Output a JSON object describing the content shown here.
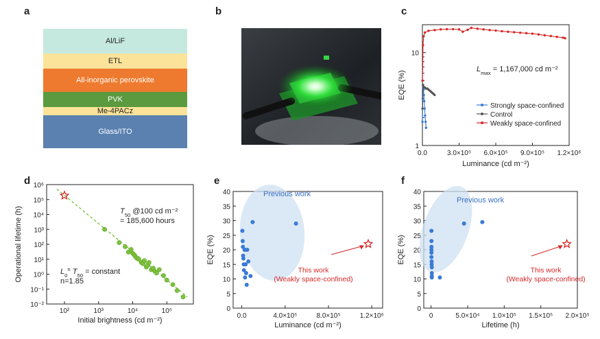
{
  "panels": [
    "a",
    "b",
    "c",
    "d",
    "e",
    "f"
  ],
  "stack": {
    "layers": [
      {
        "label": "Al/LiF",
        "color": "#c6e9df"
      },
      {
        "label": "ETL",
        "color": "#fbe39a"
      },
      {
        "label": "All-inorganic perovskite",
        "color": "#ee7a2f"
      },
      {
        "label": "PVK",
        "color": "#5b9a3e"
      },
      {
        "label": "Me-4PACz",
        "color": "#fbe39a"
      },
      {
        "label": "Glass/ITO",
        "color": "#5a81b0"
      }
    ]
  },
  "chart_data": [
    {
      "panel": "c",
      "type": "line",
      "xlabel": "Luminance (cd m⁻²)",
      "ylabel": "EQE (%)",
      "xlim": [
        0,
        1200000
      ],
      "ylim": [
        1,
        20
      ],
      "yscale": "log",
      "xticks": [
        "0.0",
        "3.0×10⁵",
        "6.0×10⁵",
        "9.0×10⁵",
        "1.2×10⁶"
      ],
      "yticks": [
        "1",
        "10"
      ],
      "annotation": {
        "symbol": "L",
        "sub": "max",
        "text": " = 1,167,000 cd m⁻²"
      },
      "legend_position": "center-right",
      "series": [
        {
          "name": "Strongly space-confined",
          "color": "#3a7bd5",
          "x": [
            1000,
            3000,
            6000,
            9000,
            12000,
            15000,
            18000,
            22000,
            26000,
            30000
          ],
          "y": [
            1.8,
            3.2,
            4.2,
            4.0,
            3.5,
            3.0,
            2.5,
            2.1,
            1.8,
            1.55
          ]
        },
        {
          "name": "Control",
          "color": "#555555",
          "x": [
            1000,
            5000,
            10000,
            20000,
            30000,
            40000,
            50000,
            60000,
            70000,
            80000,
            90000,
            100000
          ],
          "y": [
            2.5,
            4.5,
            4.3,
            4.2,
            4.1,
            4.1,
            4.0,
            3.9,
            3.8,
            3.7,
            3.6,
            3.5
          ]
        },
        {
          "name": "Weakly space-confined",
          "color": "#d62728",
          "x": [
            1000,
            5000,
            10000,
            20000,
            50000,
            100000,
            150000,
            200000,
            250000,
            300000,
            330000,
            370000,
            400000,
            450000,
            500000,
            550000,
            600000,
            650000,
            700000,
            750000,
            800000,
            850000,
            900000,
            950000,
            1000000,
            1050000,
            1100000,
            1150000,
            1167000
          ],
          "y": [
            5,
            12,
            15,
            16.5,
            17.2,
            17.5,
            17.8,
            17.9,
            17.9,
            17.8,
            16.8,
            17.6,
            18.5,
            18.1,
            17.8,
            17.5,
            17.3,
            17.0,
            16.8,
            16.6,
            16.4,
            16.2,
            16.0,
            15.7,
            15.4,
            15.1,
            14.8,
            14.5,
            14.3
          ]
        }
      ]
    },
    {
      "panel": "d",
      "type": "scatter",
      "xlabel": "Initial brightness (cd m⁻²)",
      "ylabel": "Operational lifetime (h)",
      "xscale": "log",
      "yscale": "log",
      "xlim": [
        30,
        600000
      ],
      "ylim": [
        0.01,
        1000000
      ],
      "xticks": [
        "10²",
        "10³",
        "10⁴",
        "10⁵"
      ],
      "yticks": [
        "10⁻²",
        "10⁻¹",
        "10⁰",
        "10¹",
        "10²",
        "10³",
        "10⁴",
        "10⁵",
        "10⁶"
      ],
      "annotation1": {
        "symbol": "T",
        "sub": "50",
        "line1": " @100 cd m⁻²",
        "line2": "= 185,600 hours"
      },
      "annotation2": {
        "l0": "L",
        "l0sub": "0",
        "l0sup": "n",
        "t": " T",
        "tsub": "50",
        "rest": " = constant",
        "line2": "n=1.85"
      },
      "star": {
        "x": 100,
        "y": 185600
      },
      "fit": {
        "x": [
          60,
          400000
        ],
        "y": [
          500000,
          0.03
        ]
      },
      "points": {
        "x": [
          1500,
          4000,
          6000,
          7500,
          9000,
          10000,
          11000,
          12000,
          13000,
          15000,
          18000,
          20000,
          22000,
          25000,
          28000,
          30000,
          35000,
          40000,
          45000,
          50000,
          60000,
          80000,
          100000,
          150000,
          200000,
          300000
        ],
        "y": [
          1000,
          130,
          70,
          30,
          45,
          25,
          20,
          15,
          12,
          10,
          6,
          5,
          8,
          3,
          4,
          6,
          2,
          2.5,
          1.5,
          1.2,
          2,
          0.8,
          0.4,
          0.2,
          0.08,
          0.03
        ]
      }
    },
    {
      "panel": "e",
      "type": "scatter",
      "xlabel": "Luminance (cd m⁻²)",
      "ylabel": "EQE (%)",
      "xlim": [
        -80000,
        1300000
      ],
      "ylim": [
        0,
        40
      ],
      "xticks": [
        "0.0",
        "4.0×10⁵",
        "8.0×10⁵",
        "1.2×10⁶"
      ],
      "yticks": [
        "0",
        "5",
        "10",
        "15",
        "20",
        "25",
        "30",
        "35",
        "40"
      ],
      "label_previous": "Previous work",
      "label_this": "This work",
      "label_this2": "(Weakly space-confined)",
      "previous": {
        "x": [
          5000,
          8000,
          10000,
          12000,
          15000,
          18000,
          20000,
          25000,
          30000,
          35000,
          40000,
          45000,
          50000,
          60000,
          80000,
          100000,
          500000
        ],
        "y": [
          26.5,
          23,
          21,
          18,
          17,
          15,
          13,
          20,
          10.5,
          15,
          12,
          8,
          20,
          16,
          11,
          29.5,
          29
        ]
      },
      "this_work": {
        "x": 1167000,
        "y": 22
      }
    },
    {
      "panel": "f",
      "type": "scatter",
      "xlabel": "Lifetime (h)",
      "ylabel": "EQE (%)",
      "xlim": [
        -10000,
        200000
      ],
      "ylim": [
        0,
        40
      ],
      "xticks": [
        "0",
        "5.0×10⁴",
        "1.0×10⁵",
        "1.5×10⁵",
        "2.0×10⁵"
      ],
      "yticks": [
        "0",
        "5",
        "10",
        "15",
        "20",
        "25",
        "30",
        "35",
        "40"
      ],
      "label_previous": "Previous work",
      "label_this": "This work",
      "label_this2": "(Weakly space-confined)",
      "previous": {
        "x": [
          500,
          500,
          500,
          500,
          500,
          500,
          800,
          800,
          1000,
          1000,
          1000,
          1000,
          12000,
          45000,
          70000
        ],
        "y": [
          26.5,
          23,
          21,
          20,
          19,
          17.5,
          16,
          15,
          14,
          12,
          11,
          10.5,
          10.5,
          29,
          29.5
        ]
      },
      "this_work": {
        "x": 185600,
        "y": 22
      }
    }
  ]
}
